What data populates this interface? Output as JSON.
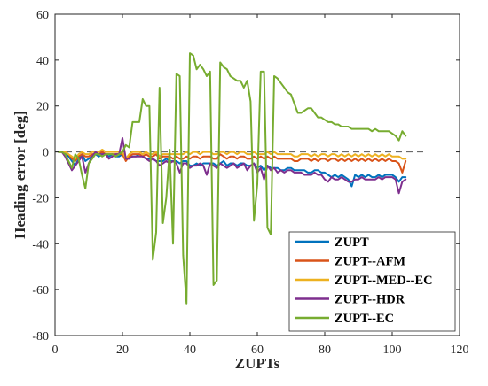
{
  "chart_data": {
    "type": "line",
    "xlabel": "ZUPTs",
    "ylabel": "Heading error [deg]",
    "xlim": [
      0,
      120
    ],
    "ylim": [
      -80,
      60
    ],
    "xticks": [
      0,
      20,
      40,
      60,
      80,
      100,
      120
    ],
    "yticks": [
      -80,
      -60,
      -40,
      -20,
      0,
      20,
      40,
      60
    ],
    "grid": false,
    "legend_position": "bottom-right",
    "reference_line": {
      "y": 0,
      "style": "dashed",
      "x_range": [
        0,
        110
      ]
    },
    "x": [
      1,
      2,
      3,
      4,
      5,
      6,
      7,
      8,
      9,
      10,
      11,
      12,
      13,
      14,
      15,
      16,
      17,
      18,
      19,
      20,
      21,
      22,
      23,
      24,
      25,
      26,
      27,
      28,
      29,
      30,
      31,
      32,
      33,
      34,
      35,
      36,
      37,
      38,
      39,
      40,
      41,
      42,
      43,
      44,
      45,
      46,
      47,
      48,
      49,
      50,
      51,
      52,
      53,
      54,
      55,
      56,
      57,
      58,
      59,
      60,
      61,
      62,
      63,
      64,
      65,
      66,
      67,
      68,
      69,
      70,
      71,
      72,
      73,
      74,
      75,
      76,
      77,
      78,
      79,
      80,
      81,
      82,
      83,
      84,
      85,
      86,
      87,
      88,
      89,
      90,
      91,
      92,
      93,
      94,
      95,
      96,
      97,
      98,
      99,
      100,
      101,
      102,
      103,
      104
    ],
    "series": [
      {
        "name": "ZUPT",
        "color": "#0072BD",
        "values": [
          0,
          0,
          0,
          -2,
          -4,
          -6,
          -3,
          -1,
          -4,
          -3,
          -2,
          -1,
          -2,
          -1,
          -1,
          -2,
          -1,
          -2,
          -2,
          -1,
          -3,
          -2,
          -2,
          -2,
          -1,
          -2,
          -3,
          -3,
          -3,
          -4,
          -4,
          -4,
          -3,
          -4,
          -4,
          -4,
          -5,
          -4,
          -4,
          -6,
          -6,
          -5,
          -6,
          -5,
          -5,
          -5,
          -5,
          -6,
          -5,
          -4,
          -6,
          -5,
          -5,
          -6,
          -5,
          -5,
          -6,
          -6,
          -5,
          -7,
          -6,
          -8,
          -6,
          -7,
          -7,
          -7,
          -8,
          -8,
          -7,
          -7,
          -8,
          -8,
          -8,
          -8,
          -9,
          -9,
          -8,
          -8,
          -9,
          -9,
          -10,
          -11,
          -10,
          -11,
          -10,
          -11,
          -12,
          -15,
          -10,
          -11,
          -10,
          -11,
          -10,
          -11,
          -11,
          -10,
          -11,
          -10,
          -10,
          -10,
          -11,
          -13,
          -11,
          -11
        ]
      },
      {
        "name": "ZUPT--AFM",
        "color": "#D95319",
        "values": [
          0,
          0,
          0,
          -1,
          -3,
          -4,
          -2,
          -1,
          -2,
          -2,
          -1,
          -1,
          -1,
          0,
          -1,
          -1,
          -1,
          -1,
          -1,
          -1,
          -4,
          -2,
          -1,
          -1,
          -1,
          -2,
          -1,
          -2,
          -2,
          -1,
          -3,
          -2,
          -2,
          -2,
          -3,
          -2,
          -3,
          -3,
          -2,
          -3,
          -2,
          -2,
          -3,
          -2,
          -2,
          -2,
          -3,
          -3,
          -1,
          -2,
          -3,
          -2,
          -2,
          -3,
          -2,
          -2,
          -3,
          -3,
          -2,
          -3,
          -2,
          -3,
          -2,
          -3,
          -2,
          -3,
          -3,
          -3,
          -3,
          -3,
          -4,
          -4,
          -3,
          -3,
          -3,
          -4,
          -3,
          -4,
          -3,
          -3,
          -4,
          -3,
          -3,
          -4,
          -3,
          -4,
          -3,
          -4,
          -3,
          -4,
          -3,
          -4,
          -3,
          -4,
          -3,
          -4,
          -3,
          -4,
          -3,
          -4,
          -4,
          -5,
          -9,
          -4
        ]
      },
      {
        "name": "ZUPT--MED--EC",
        "color": "#EDB120",
        "values": [
          0,
          0,
          0,
          -1,
          -2,
          -3,
          -1,
          0,
          -1,
          -1,
          0,
          0,
          0,
          1,
          0,
          0,
          0,
          0,
          0,
          0,
          -3,
          -1,
          0,
          0,
          0,
          -1,
          0,
          -1,
          -1,
          0,
          -2,
          -1,
          -1,
          -1,
          -1,
          -1,
          -1,
          -1,
          0,
          -1,
          0,
          0,
          -1,
          0,
          0,
          0,
          -1,
          -1,
          0,
          0,
          -1,
          0,
          0,
          -1,
          0,
          0,
          -1,
          -1,
          0,
          -1,
          -1,
          -1,
          0,
          -1,
          0,
          -1,
          -1,
          -1,
          -1,
          -1,
          -2,
          -2,
          -1,
          -1,
          -1,
          -2,
          -1,
          -2,
          -1,
          -1,
          -2,
          -1,
          -1,
          -2,
          -1,
          -2,
          -1,
          -2,
          -1,
          -2,
          -1,
          -2,
          -1,
          -2,
          -1,
          -2,
          -1,
          -2,
          -1,
          -2,
          -2,
          -2,
          -3,
          -3
        ]
      },
      {
        "name": "ZUPT--HDR",
        "color": "#7E2F8E",
        "values": [
          0,
          0,
          -2,
          -5,
          -8,
          -6,
          -4,
          -2,
          -9,
          -5,
          -2,
          0,
          -1,
          -1,
          -1,
          -3,
          -2,
          -1,
          -1,
          6,
          -3,
          -3,
          -2,
          -2,
          -2,
          -2,
          -3,
          -4,
          -3,
          -4,
          -6,
          -5,
          -4,
          -5,
          -4,
          -5,
          -9,
          -5,
          -5,
          -7,
          -6,
          -6,
          -5,
          -6,
          -10,
          -5,
          -6,
          -7,
          -5,
          -6,
          -7,
          -6,
          -5,
          -7,
          -6,
          -5,
          -8,
          -6,
          -5,
          -9,
          -7,
          -12,
          -6,
          -8,
          -7,
          -9,
          -8,
          -9,
          -8,
          -8,
          -9,
          -9,
          -9,
          -10,
          -10,
          -10,
          -9,
          -10,
          -10,
          -12,
          -13,
          -11,
          -12,
          -12,
          -11,
          -12,
          -13,
          -13,
          -12,
          -12,
          -11,
          -12,
          -12,
          -12,
          -12,
          -11,
          -12,
          -11,
          -11,
          -11,
          -12,
          -18,
          -13,
          -12
        ]
      },
      {
        "name": "ZUPT--EC",
        "color": "#77AC30",
        "values": [
          0,
          0,
          -1,
          -4,
          -7,
          -1,
          -3,
          -10,
          -16,
          -5,
          -3,
          -1,
          -1,
          -2,
          -1,
          -1,
          -1,
          -2,
          -1,
          0,
          3,
          2,
          13,
          13,
          13,
          23,
          20,
          20,
          -47,
          -35,
          28,
          -31,
          -20,
          1,
          -40,
          34,
          33,
          -45,
          -66,
          43,
          42,
          36,
          38,
          36,
          33,
          35,
          -58,
          -56,
          39,
          37,
          36,
          33,
          32,
          31,
          31,
          28,
          31,
          22,
          -30,
          -14,
          35,
          35,
          -33,
          -36,
          33,
          32,
          30,
          28,
          26,
          25,
          21,
          17,
          17,
          18,
          19,
          19,
          17,
          15,
          15,
          14,
          13,
          13,
          12,
          12,
          11,
          11,
          11,
          10,
          10,
          10,
          10,
          10,
          10,
          9,
          10,
          9,
          9,
          9,
          9,
          8,
          7,
          5,
          9,
          7
        ]
      }
    ]
  }
}
